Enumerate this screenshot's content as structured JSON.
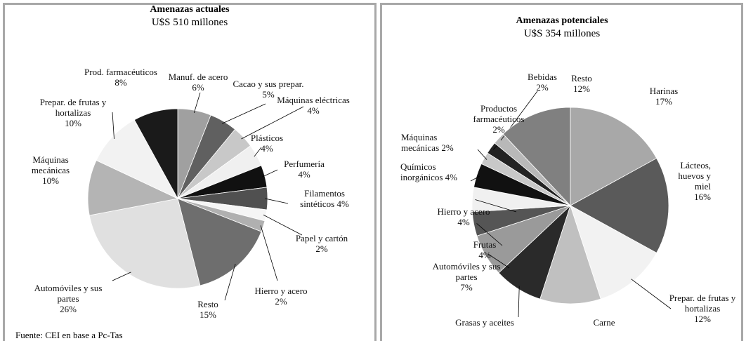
{
  "chart_data": [
    {
      "type": "pie",
      "title": "Amenazas actuales",
      "subtitle": "U$S 510 millones",
      "categories": [
        "Manuf. de acero",
        "Cacao y sus prepar.",
        "Máquinas eléctricas",
        "Plásticos",
        "Perfumería",
        "Filamentos sintéticos",
        "Papel y cartón",
        "Hierro y acero",
        "Resto",
        "Automóviles y sus partes",
        "Máquinas mecánicas",
        "Prepar. de frutas y hortalizas",
        "Prod. farmacéuticos"
      ],
      "values": [
        6,
        5,
        4,
        4,
        4,
        4,
        2,
        2,
        15,
        26,
        10,
        10,
        8
      ],
      "value_labels": [
        "6%",
        "5%",
        "4%",
        "4%",
        "4%",
        "4%",
        "2%",
        "2%",
        "15%",
        "26%",
        "10%",
        "10%",
        "8%"
      ],
      "colors": [
        "#a0a0a0",
        "#606060",
        "#c8c8c8",
        "#f0f0f0",
        "#111111",
        "#505050",
        "#f5f5f5",
        "#b0b0b0",
        "#6e6e6e",
        "#e0e0e0",
        "#b4b4b4",
        "#f2f2f2",
        "#1a1a1a"
      ]
    },
    {
      "type": "pie",
      "title": "Amenazas potenciales",
      "subtitle": "U$S 354 millones",
      "categories": [
        "Harinas",
        "Lácteos, huevos y miel",
        "Prepar. de frutas y hortalizas",
        "Carne",
        "Grasas y aceites",
        "Automóviles y sus partes",
        "Frutas",
        "Hierro y acero",
        "Químicos inorgánicos",
        "Máquinas mecánicas",
        "Productos farmacéuticos",
        "Bebidas",
        "Resto"
      ],
      "values": [
        17,
        16,
        12,
        10,
        8,
        7,
        4,
        4,
        4,
        2,
        2,
        2,
        12
      ],
      "value_labels": [
        "17%",
        "16%",
        "12%",
        null,
        null,
        "7%",
        "4%",
        "4%",
        "4%",
        "2%",
        "2%",
        "2%",
        "12%"
      ],
      "colors": [
        "#a8a8a8",
        "#5a5a5a",
        "#f2f2f2",
        "#c0c0c0",
        "#2a2a2a",
        "#9a9a9a",
        "#555555",
        "#f0f0f0",
        "#111111",
        "#c8c8c8",
        "#222222",
        "#b8b8b8",
        "#808080"
      ]
    }
  ],
  "source": "Fuente: CEI en base a Pc-Tas"
}
